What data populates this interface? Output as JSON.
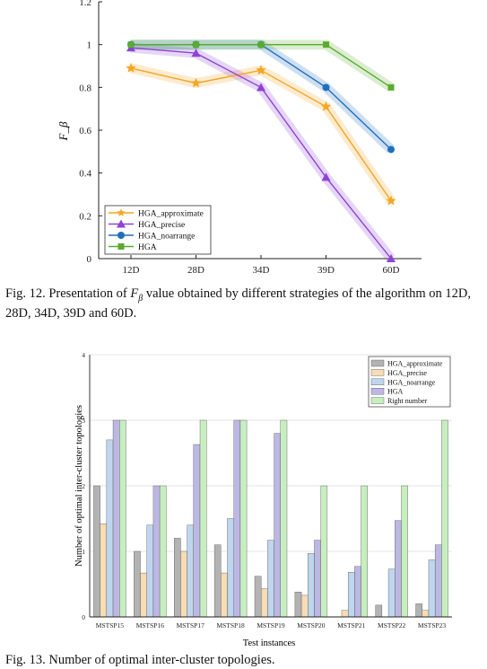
{
  "chart_data": [
    {
      "type": "line",
      "title": "",
      "xlabel": "",
      "ylabel": "F_β",
      "categories": [
        "12D",
        "28D",
        "34D",
        "39D",
        "60D"
      ],
      "ylim": [
        0,
        1.2
      ],
      "yticks": [
        "0",
        "0.2",
        "0.4",
        "0.6",
        "0.8",
        "1",
        "1.2"
      ],
      "legend_position": "bottom-left",
      "grid": false,
      "series": [
        {
          "name": "HGA_approximate",
          "values": [
            0.89,
            0.82,
            0.88,
            0.71,
            0.27
          ],
          "color": "#f5a623",
          "marker": "star"
        },
        {
          "name": "HGA_precise",
          "values": [
            0.985,
            0.96,
            0.8,
            0.38,
            0.0
          ],
          "color": "#8e44d6",
          "marker": "triangle"
        },
        {
          "name": "HGA_noarrange",
          "values": [
            1.0,
            1.0,
            1.0,
            0.8,
            0.51
          ],
          "color": "#1f6fbf",
          "marker": "circle"
        },
        {
          "name": "HGA",
          "values": [
            1.0,
            1.0,
            1.0,
            1.0,
            0.8
          ],
          "color": "#5aab2e",
          "marker": "square"
        }
      ]
    },
    {
      "type": "bar",
      "title": "",
      "xlabel": "Test instances",
      "ylabel": "Number of optimal inter-cluster topologies",
      "categories": [
        "MSTSP15",
        "MSTSP16",
        "MSTSP17",
        "MSTSP18",
        "MSTSP19",
        "MSTSP20",
        "MSTSP21",
        "MSTSP22",
        "MSTSP23"
      ],
      "ylim": [
        0,
        4
      ],
      "yticks": [
        "0",
        "1",
        "2",
        "3",
        "4"
      ],
      "grid": true,
      "legend_position": "top-right",
      "series": [
        {
          "name": "HGA_approximate",
          "color": "#b3b3b3",
          "values": [
            2.0,
            1.0,
            1.2,
            1.1,
            0.62,
            0.38,
            0.0,
            0.18,
            0.2
          ]
        },
        {
          "name": "HGA_precise",
          "color": "#f7dcb4",
          "values": [
            1.42,
            0.67,
            1.0,
            0.67,
            0.43,
            0.33,
            0.1,
            0.0,
            0.1
          ]
        },
        {
          "name": "HGA_noarrange",
          "color": "#bed6ee",
          "values": [
            2.7,
            1.4,
            1.4,
            1.5,
            1.17,
            0.97,
            0.68,
            0.73,
            0.87
          ]
        },
        {
          "name": "HGA",
          "color": "#bdb7e3",
          "values": [
            3.0,
            2.0,
            2.63,
            3.0,
            2.8,
            1.17,
            0.77,
            1.47,
            1.1
          ]
        },
        {
          "name": "Right number",
          "color": "#c7eebf",
          "values": [
            3,
            2,
            3,
            3,
            3,
            2,
            2,
            2,
            3
          ]
        }
      ]
    }
  ],
  "captions": {
    "fig12_prefix": "Fig. 12. Presentation of ",
    "fig12_symbol": "F",
    "fig12_subscript": "β",
    "fig12_suffix": " value obtained by different strategies of the algorithm on 12D, 28D, 34D, 39D and 60D.",
    "fig13": "Fig. 13.  Number of optimal inter-cluster topologies."
  }
}
